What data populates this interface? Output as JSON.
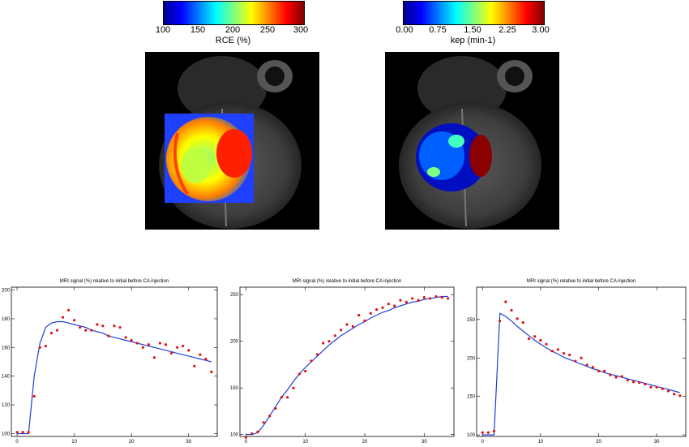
{
  "colorbars": [
    {
      "label": "RCE (%)",
      "ticks": [
        "100",
        "150",
        "200",
        "250",
        "300"
      ]
    },
    {
      "label": "kep (min-1)",
      "ticks": [
        "0.00",
        "0.75",
        "1.50",
        "2.25",
        "3.00"
      ]
    }
  ],
  "colors": {
    "jet": [
      "#00008f",
      "#0000ff",
      "#0080ff",
      "#00ffff",
      "#80ff80",
      "#ffff00",
      "#ff8000",
      "#ff0000",
      "#800000"
    ],
    "fit_line": "#1f3fd6",
    "data_point": "#e01010"
  },
  "chart_data": [
    {
      "type": "scatter",
      "title": "MRI signal (%) relative to initial before CA injection",
      "xlim": [
        -1,
        35
      ],
      "ylim": [
        98,
        202
      ],
      "xticks": [
        0,
        10,
        20,
        30
      ],
      "yticks": [
        100,
        120,
        140,
        160,
        180,
        200
      ],
      "x": [
        0,
        1,
        2,
        3,
        4,
        5,
        6,
        7,
        8,
        9,
        10,
        11,
        12,
        13,
        14,
        15,
        16,
        17,
        18,
        19,
        20,
        21,
        22,
        23,
        24,
        25,
        26,
        27,
        28,
        29,
        30,
        31,
        32,
        33,
        34
      ],
      "series": [
        {
          "kind": "points",
          "values": [
            101,
            101,
            101,
            126,
            160,
            161,
            170,
            172,
            181,
            186,
            179,
            174,
            172,
            172,
            176,
            175,
            168,
            175,
            174,
            167,
            165,
            163,
            160,
            162,
            153,
            163,
            162,
            156,
            160,
            161,
            158,
            147,
            155,
            152,
            143
          ]
        },
        {
          "kind": "fit",
          "values": [
            100,
            100,
            100,
            140,
            163,
            174,
            177,
            178,
            178,
            177,
            176,
            175,
            174,
            172,
            171,
            170,
            168,
            167,
            166,
            165,
            164,
            163,
            162,
            161,
            160,
            159,
            158,
            157,
            156,
            155,
            154,
            153,
            152,
            151,
            150
          ]
        }
      ]
    },
    {
      "type": "scatter",
      "title": "MRI signal (%) relative to initial before CA injection",
      "xlim": [
        -1,
        35
      ],
      "ylim": [
        98,
        258
      ],
      "xticks": [
        0,
        10,
        20,
        30
      ],
      "yticks": [
        100,
        150,
        200,
        250
      ],
      "x": [
        0,
        1,
        2,
        3,
        4,
        5,
        6,
        7,
        8,
        9,
        10,
        11,
        12,
        13,
        14,
        15,
        16,
        17,
        18,
        19,
        20,
        21,
        22,
        23,
        24,
        25,
        26,
        27,
        28,
        29,
        30,
        31,
        32,
        33,
        34
      ],
      "series": [
        {
          "kind": "points",
          "values": [
            97,
            101,
            103,
            113,
            120,
            128,
            140,
            140,
            150,
            165,
            168,
            179,
            186,
            198,
            200,
            206,
            212,
            218,
            216,
            228,
            222,
            230,
            234,
            236,
            240,
            238,
            244,
            242,
            246,
            244,
            247,
            246,
            248,
            247,
            246
          ]
        },
        {
          "kind": "fit",
          "values": [
            100,
            100,
            102,
            110,
            120,
            130,
            140,
            148,
            157,
            165,
            172,
            178,
            184,
            190,
            196,
            201,
            206,
            210,
            214,
            218,
            221,
            225,
            228,
            231,
            233,
            236,
            238,
            240,
            242,
            243,
            245,
            246,
            247,
            248,
            248
          ]
        }
      ]
    },
    {
      "type": "scatter",
      "title": "MRI signal (%) relative to initial before CA injection",
      "xlim": [
        -1,
        35
      ],
      "ylim": [
        98,
        292
      ],
      "xticks": [
        0,
        10,
        20,
        30
      ],
      "yticks": [
        100,
        150,
        200,
        250
      ],
      "x": [
        0,
        1,
        2,
        3,
        4,
        5,
        6,
        7,
        8,
        9,
        10,
        11,
        12,
        13,
        14,
        15,
        16,
        17,
        18,
        19,
        20,
        21,
        22,
        23,
        24,
        25,
        26,
        27,
        28,
        29,
        30,
        31,
        32,
        33,
        34
      ],
      "series": [
        {
          "kind": "points",
          "values": [
            103,
            103,
            105,
            248,
            273,
            262,
            251,
            246,
            225,
            228,
            223,
            218,
            209,
            211,
            206,
            204,
            196,
            200,
            191,
            188,
            183,
            183,
            178,
            175,
            176,
            171,
            169,
            168,
            166,
            162,
            162,
            160,
            157,
            153,
            151
          ]
        },
        {
          "kind": "fit",
          "values": [
            100,
            100,
            100,
            258,
            254,
            248,
            241,
            235,
            229,
            223,
            218,
            213,
            209,
            205,
            201,
            198,
            195,
            192,
            189,
            186,
            184,
            181,
            179,
            177,
            175,
            173,
            171,
            169,
            167,
            165,
            163,
            161,
            159,
            157,
            155
          ]
        }
      ]
    }
  ]
}
